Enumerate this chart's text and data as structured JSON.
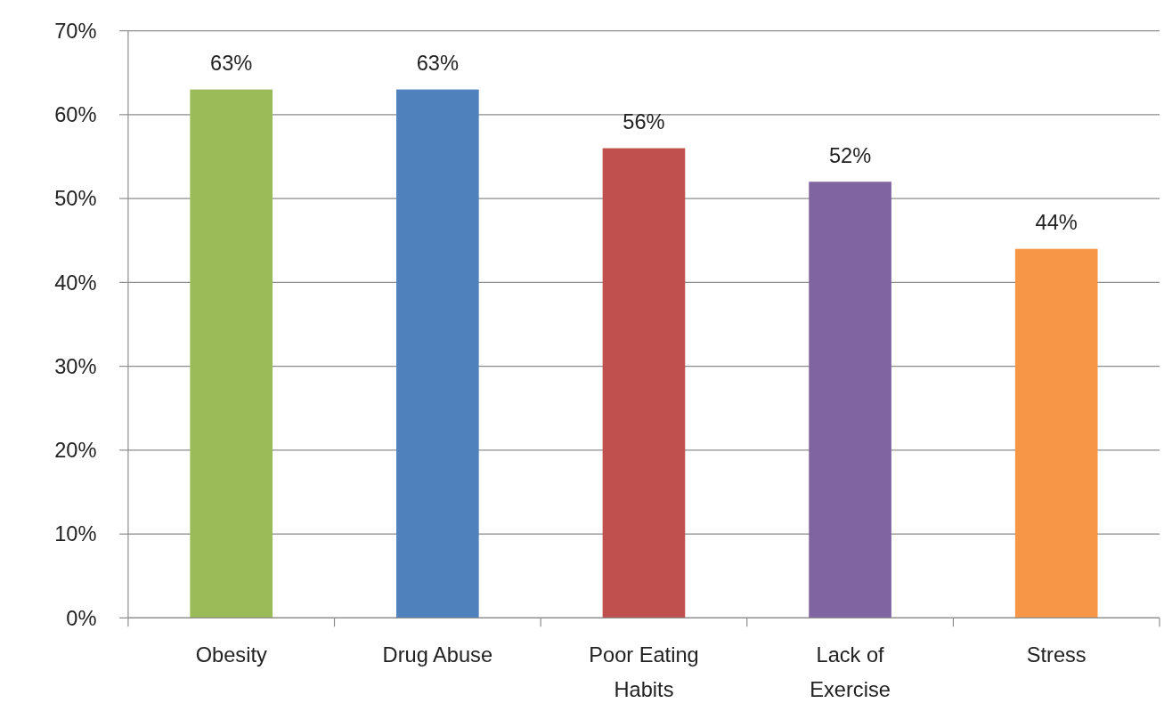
{
  "chart_data": {
    "type": "bar",
    "categories": [
      "Obesity",
      "Drug Abuse",
      "Poor Eating Habits",
      "Lack of Exercise",
      "Stress"
    ],
    "values": [
      63,
      63,
      56,
      52,
      44
    ],
    "colors": [
      "#9bbb59",
      "#4f81bd",
      "#c0504d",
      "#8064a2",
      "#f79646"
    ],
    "value_labels": [
      "63%",
      "63%",
      "56%",
      "52%",
      "44%"
    ],
    "ylim": [
      0,
      70
    ],
    "yticks": [
      {
        "value": 0,
        "label": "0%"
      },
      {
        "value": 10,
        "label": "10%"
      },
      {
        "value": 20,
        "label": "20%"
      },
      {
        "value": 30,
        "label": "30%"
      },
      {
        "value": 40,
        "label": "40%"
      },
      {
        "value": 50,
        "label": "50%"
      },
      {
        "value": 60,
        "label": "60%"
      },
      {
        "value": 70,
        "label": "70%"
      }
    ],
    "grid": "y"
  }
}
